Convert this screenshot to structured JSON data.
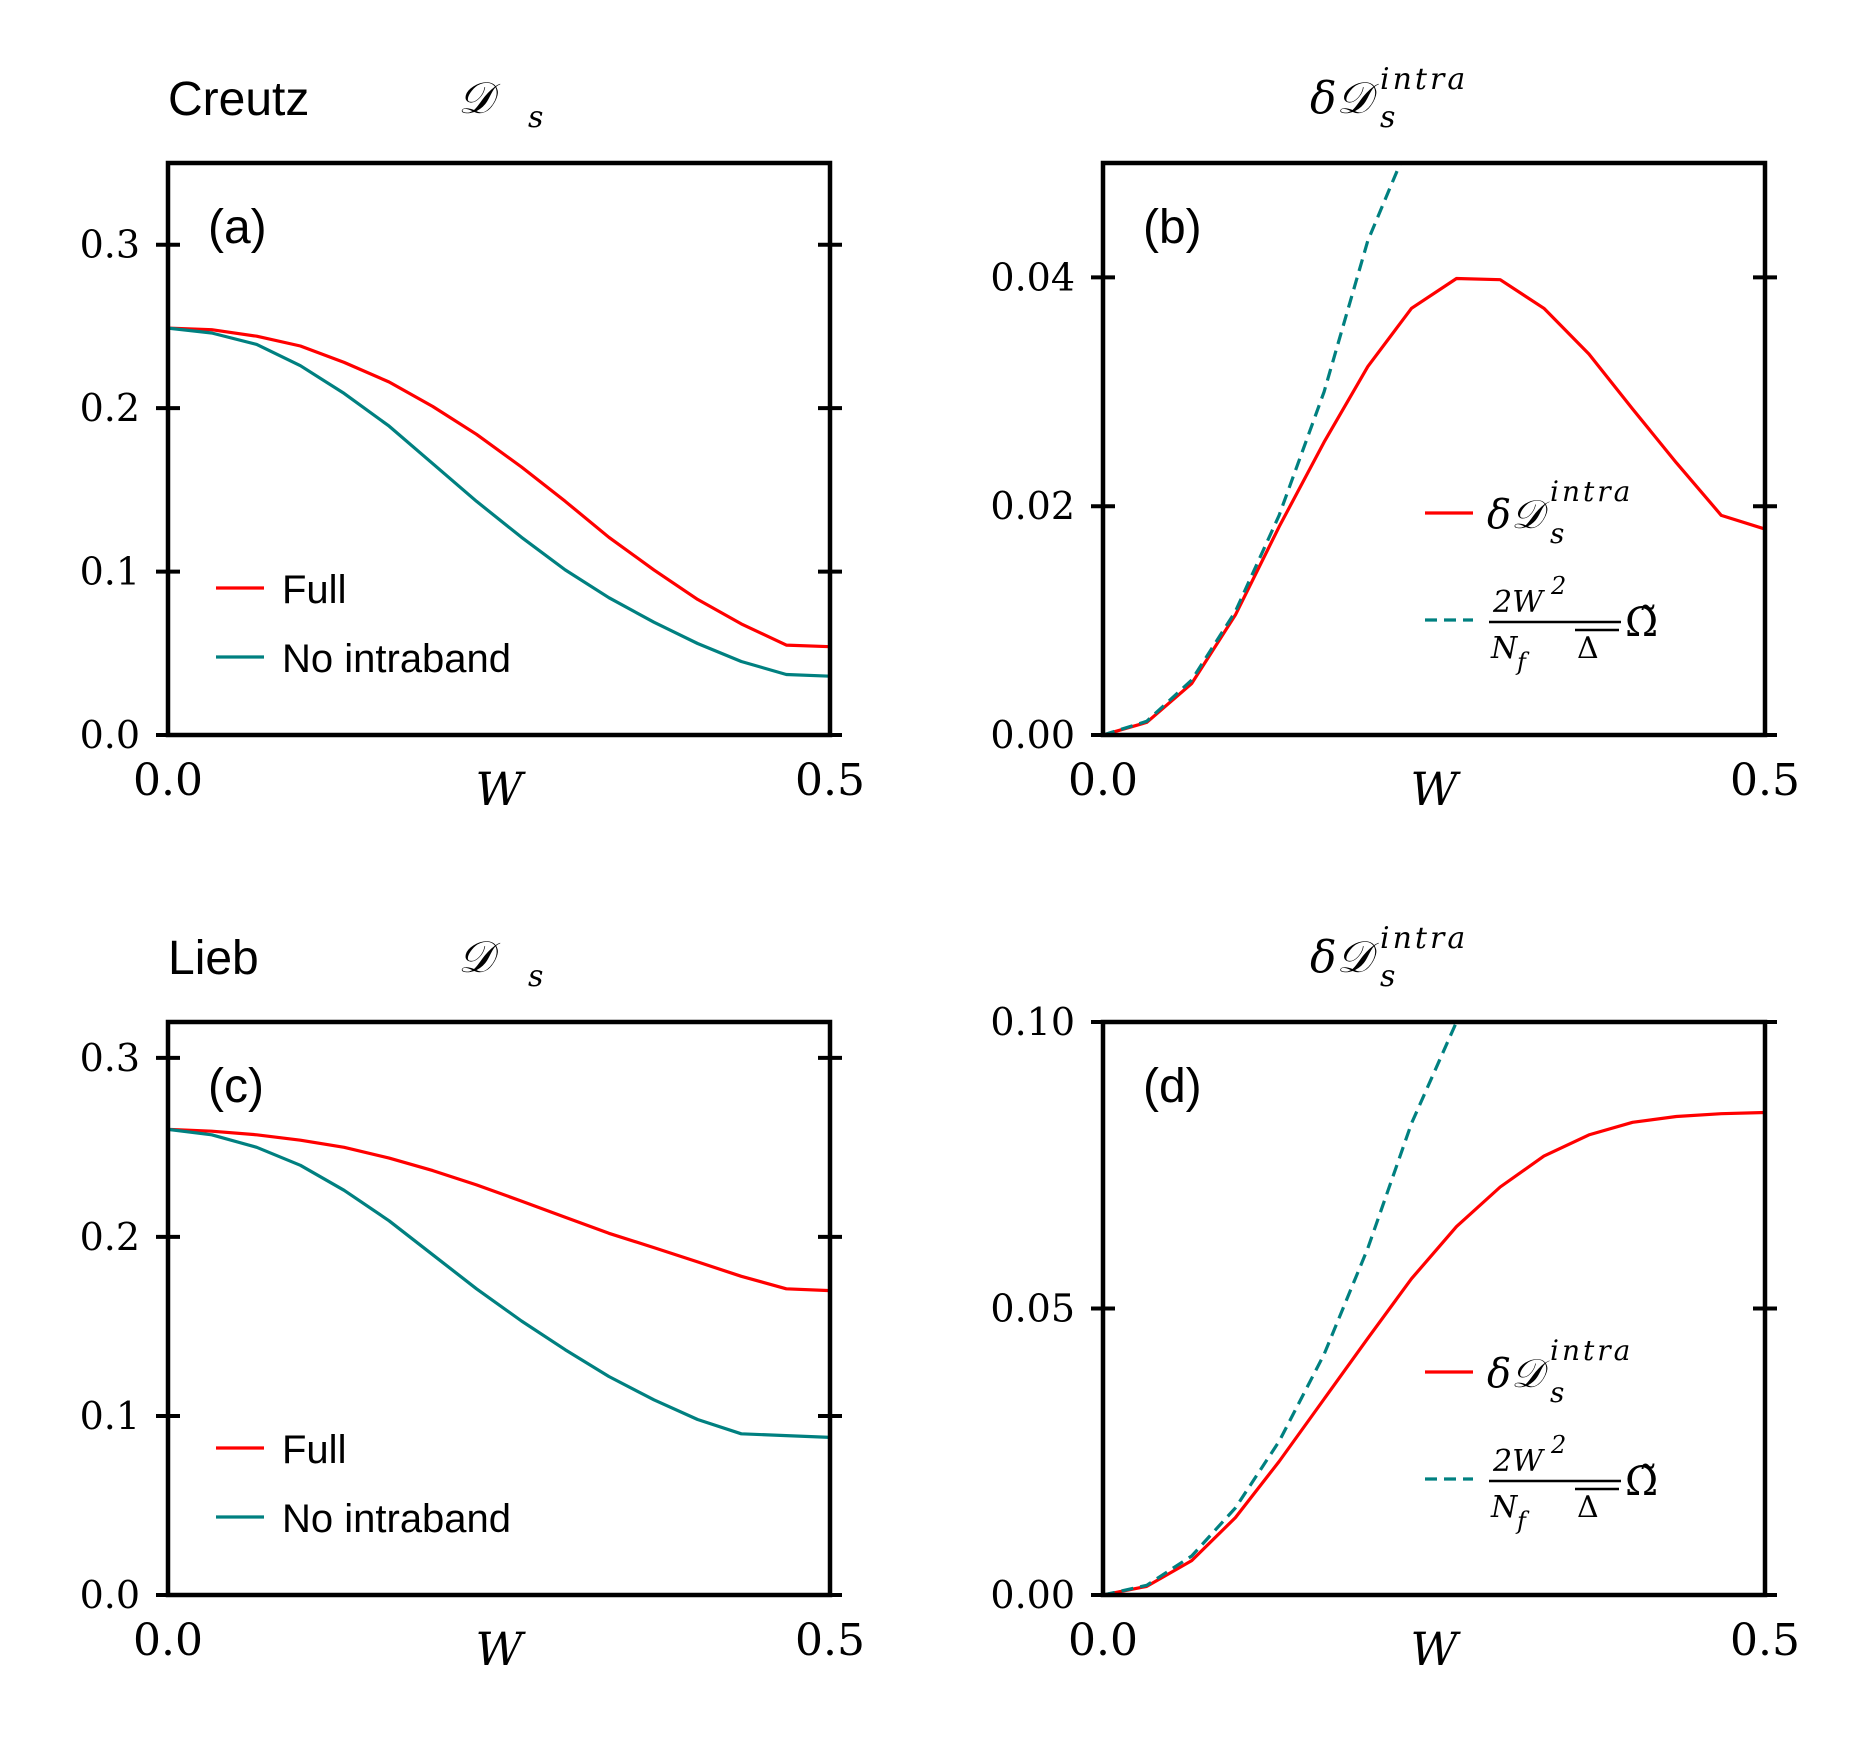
{
  "colors": {
    "full": "#ff0000",
    "no_intra": "#008080",
    "axes": "#000000"
  },
  "chart_data": [
    {
      "type": "line",
      "panel_label": "(a)",
      "system_label": "Creutz",
      "title": "𝒟s",
      "title_main": "𝒟",
      "title_sub": "s",
      "xlabel": "W",
      "xlim": [
        0,
        0.5
      ],
      "ylim": [
        0,
        0.35
      ],
      "xticks": [
        0,
        0.5
      ],
      "xtick_labels": [
        "0.0",
        "0.5"
      ],
      "yticks": [
        0,
        0.1,
        0.2,
        0.3
      ],
      "ytick_labels": [
        "0.0",
        "0.1",
        "0.2",
        "0.3"
      ],
      "legend_position": "lower-left",
      "series": [
        {
          "name": "Full",
          "style": "solid",
          "color": "#ff0000",
          "x": [
            0,
            0.033,
            0.067,
            0.1,
            0.133,
            0.167,
            0.2,
            0.233,
            0.267,
            0.3,
            0.333,
            0.367,
            0.4,
            0.433,
            0.467,
            0.5
          ],
          "y": [
            0.249,
            0.248,
            0.244,
            0.238,
            0.228,
            0.216,
            0.201,
            0.184,
            0.164,
            0.143,
            0.121,
            0.101,
            0.083,
            0.068,
            0.055,
            0.054
          ]
        },
        {
          "name": "No intraband",
          "style": "solid",
          "color": "#008080",
          "x": [
            0,
            0.033,
            0.067,
            0.1,
            0.133,
            0.167,
            0.2,
            0.233,
            0.267,
            0.3,
            0.333,
            0.367,
            0.4,
            0.433,
            0.467,
            0.5
          ],
          "y": [
            0.249,
            0.246,
            0.239,
            0.226,
            0.209,
            0.189,
            0.166,
            0.143,
            0.121,
            0.101,
            0.084,
            0.069,
            0.056,
            0.045,
            0.037,
            0.036
          ]
        }
      ]
    },
    {
      "type": "line",
      "panel_label": "(b)",
      "title": "δ𝒟s^intra",
      "title_main": "δ𝒟",
      "title_sub": "s",
      "title_sup": "intra",
      "xlabel": "W",
      "xlim": [
        0,
        0.5
      ],
      "ylim": [
        0,
        0.05
      ],
      "xticks": [
        0,
        0.5
      ],
      "xtick_labels": [
        "0.0",
        "0.5"
      ],
      "yticks": [
        0,
        0.02,
        0.04
      ],
      "ytick_labels": [
        "0.00",
        "0.02",
        "0.04"
      ],
      "legend_position": "center-right",
      "series": [
        {
          "name": "δ𝒟s^intra",
          "legend_main": "δ𝒟",
          "legend_sub": "s",
          "legend_sup": "intra",
          "style": "solid",
          "color": "#ff0000",
          "x": [
            0,
            0.033,
            0.067,
            0.1,
            0.133,
            0.167,
            0.2,
            0.233,
            0.267,
            0.3,
            0.333,
            0.367,
            0.4,
            0.433,
            0.467,
            0.5
          ],
          "y": [
            0,
            0.0011,
            0.0045,
            0.0105,
            0.0182,
            0.0256,
            0.0322,
            0.0373,
            0.0399,
            0.0398,
            0.0373,
            0.0333,
            0.0285,
            0.0238,
            0.0192,
            0.018
          ]
        },
        {
          "name": "2W²/(N_f Δ̄) Ω̃",
          "legend_num": "2W",
          "legend_num_sup": "2",
          "legend_den": "N",
          "legend_den_sub": "f",
          "legend_den_bar": "Δ",
          "legend_suffix": "Ω̃",
          "style": "dashed",
          "color": "#008080",
          "x": [
            0,
            0.033,
            0.067,
            0.1,
            0.133,
            0.167,
            0.2,
            0.225
          ],
          "y": [
            0,
            0.0012,
            0.0048,
            0.0108,
            0.0192,
            0.03,
            0.0432,
            0.0501
          ]
        }
      ]
    },
    {
      "type": "line",
      "panel_label": "(c)",
      "system_label": "Lieb",
      "title": "𝒟s",
      "title_main": "𝒟",
      "title_sub": "s",
      "xlabel": "W",
      "xlim": [
        0,
        0.5
      ],
      "ylim": [
        0,
        0.32
      ],
      "xticks": [
        0,
        0.5
      ],
      "xtick_labels": [
        "0.0",
        "0.5"
      ],
      "yticks": [
        0,
        0.1,
        0.2,
        0.3
      ],
      "ytick_labels": [
        "0.0",
        "0.1",
        "0.2",
        "0.3"
      ],
      "legend_position": "lower-left",
      "series": [
        {
          "name": "Full",
          "style": "solid",
          "color": "#ff0000",
          "x": [
            0,
            0.033,
            0.067,
            0.1,
            0.133,
            0.167,
            0.2,
            0.233,
            0.267,
            0.3,
            0.333,
            0.367,
            0.4,
            0.433,
            0.467,
            0.5
          ],
          "y": [
            0.26,
            0.259,
            0.257,
            0.254,
            0.25,
            0.244,
            0.237,
            0.229,
            0.22,
            0.211,
            0.202,
            0.194,
            0.186,
            0.178,
            0.171,
            0.17
          ]
        },
        {
          "name": "No intraband",
          "style": "solid",
          "color": "#008080",
          "x": [
            0,
            0.033,
            0.067,
            0.1,
            0.133,
            0.167,
            0.2,
            0.233,
            0.267,
            0.3,
            0.333,
            0.367,
            0.4,
            0.433,
            0.467,
            0.5
          ],
          "y": [
            0.26,
            0.257,
            0.25,
            0.24,
            0.226,
            0.209,
            0.19,
            0.171,
            0.153,
            0.137,
            0.122,
            0.109,
            0.098,
            0.09,
            0.089,
            0.088
          ]
        }
      ]
    },
    {
      "type": "line",
      "panel_label": "(d)",
      "title": "δ𝒟s^intra",
      "title_main": "δ𝒟",
      "title_sub": "s",
      "title_sup": "intra",
      "xlabel": "W",
      "xlim": [
        0,
        0.5
      ],
      "ylim": [
        0,
        0.1
      ],
      "xticks": [
        0,
        0.5
      ],
      "xtick_labels": [
        "0.0",
        "0.5"
      ],
      "yticks": [
        0,
        0.05,
        0.1
      ],
      "ytick_labels": [
        "0.00",
        "0.05",
        "0.10"
      ],
      "legend_position": "center-right",
      "series": [
        {
          "name": "δ𝒟s^intra",
          "legend_main": "δ𝒟",
          "legend_sub": "s",
          "legend_sup": "intra",
          "style": "solid",
          "color": "#ff0000",
          "x": [
            0,
            0.033,
            0.067,
            0.1,
            0.133,
            0.167,
            0.2,
            0.233,
            0.267,
            0.3,
            0.333,
            0.367,
            0.4,
            0.433,
            0.467,
            0.5
          ],
          "y": [
            0,
            0.0015,
            0.006,
            0.0135,
            0.0233,
            0.0342,
            0.0448,
            0.0552,
            0.0643,
            0.0712,
            0.0766,
            0.0803,
            0.0825,
            0.0835,
            0.084,
            0.0842
          ]
        },
        {
          "name": "2W²/(N_f Δ̄) Ω̃",
          "legend_num": "2W",
          "legend_num_sup": "2",
          "legend_den": "N",
          "legend_den_sub": "f",
          "legend_den_bar": "Δ",
          "legend_suffix": "Ω̃",
          "style": "dashed",
          "color": "#008080",
          "x": [
            0,
            0.033,
            0.067,
            0.1,
            0.133,
            0.167,
            0.2,
            0.233,
            0.267,
            0.29
          ],
          "y": [
            0,
            0.0017,
            0.0068,
            0.0152,
            0.0268,
            0.042,
            0.0605,
            0.0823,
            0.1,
            0.1
          ]
        }
      ]
    }
  ]
}
